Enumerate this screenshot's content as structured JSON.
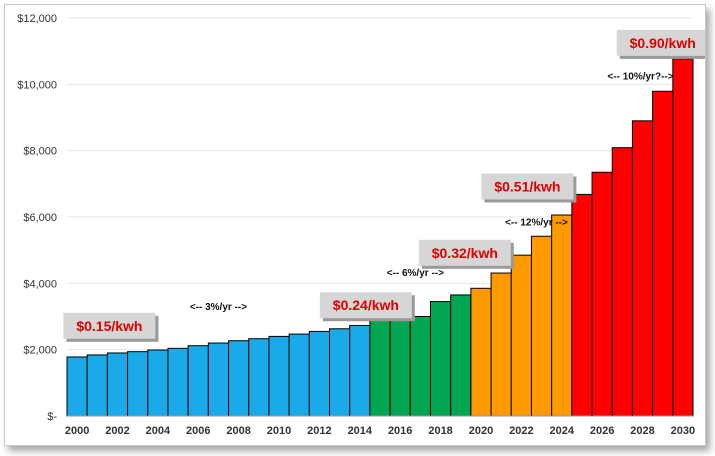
{
  "chart_data": {
    "type": "bar",
    "title": "",
    "xlabel": "",
    "ylabel": "",
    "ylim": [
      0,
      12000
    ],
    "y_ticks": [
      0,
      2000,
      4000,
      6000,
      8000,
      10000,
      12000
    ],
    "y_tick_labels": [
      "$-",
      "$2,000",
      "$4,000",
      "$6,000",
      "$8,000",
      "$10,000",
      "$12,000"
    ],
    "grid": true,
    "categories": [
      2000,
      2001,
      2002,
      2003,
      2004,
      2005,
      2006,
      2007,
      2008,
      2009,
      2010,
      2011,
      2012,
      2013,
      2014,
      2015,
      2016,
      2017,
      2018,
      2019,
      2020,
      2021,
      2022,
      2023,
      2024,
      2025,
      2026,
      2027,
      2028,
      2029,
      2030
    ],
    "x_tick_labels": [
      "2000",
      "2002",
      "2004",
      "2006",
      "2008",
      "2010",
      "2012",
      "2014",
      "2016",
      "2018",
      "2020",
      "2022",
      "2024",
      "2026",
      "2028",
      "2030"
    ],
    "values": [
      1780,
      1840,
      1900,
      1940,
      1990,
      2040,
      2120,
      2200,
      2270,
      2330,
      2400,
      2470,
      2550,
      2630,
      2730,
      2880,
      2950,
      3000,
      3450,
      3650,
      3850,
      4310,
      4850,
      5420,
      6060,
      6680,
      7350,
      8090,
      8900,
      9790,
      10770
    ],
    "segments": [
      {
        "name": "3%/yr",
        "start": 0,
        "end": 14,
        "color": "#1aa9e9"
      },
      {
        "name": "6%/yr",
        "start": 15,
        "end": 19,
        "color": "#00a651"
      },
      {
        "name": "12%/yr",
        "start": 20,
        "end": 24,
        "color": "#ff9900"
      },
      {
        "name": "10%/yr",
        "start": 25,
        "end": 30,
        "color": "#ff0000"
      }
    ],
    "rate_annotations": [
      {
        "text": "<-- 3%/yr -->",
        "year": 2007,
        "y": 3200
      },
      {
        "text": "<-- 6%/yr -->",
        "year": 2016.75,
        "y": 4220
      },
      {
        "text": "<-- 12%/yr -->",
        "year": 2022.75,
        "y": 5750
      },
      {
        "text": "<-- 10%/yr?-->",
        "year": 2027.9,
        "y": 10150
      }
    ],
    "price_labels": [
      {
        "text": "$0.15/kwh",
        "year": 2001.6,
        "y": 2720
      },
      {
        "text": "$0.24/kwh",
        "year": 2014.3,
        "y": 3340
      },
      {
        "text": "$0.32/kwh",
        "year": 2019.2,
        "y": 4920
      },
      {
        "text": "$0.51/kwh",
        "year": 2022.3,
        "y": 6920
      },
      {
        "text": "$0.90/kwh",
        "year": 2029.0,
        "y": 11250
      }
    ]
  },
  "colors": {
    "grid": "#e6e6e6",
    "bar_outline": "#000000",
    "price_label_bg": "#d6d6d6",
    "price_label_text": "#e00000"
  }
}
